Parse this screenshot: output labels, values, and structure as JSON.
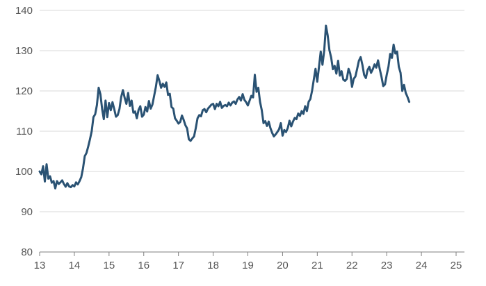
{
  "chart_data": {
    "type": "line",
    "title": "",
    "xlabel": "",
    "ylabel": "",
    "xlim": [
      13,
      25.3
    ],
    "ylim": [
      80,
      140
    ],
    "x_ticks": [
      {
        "value": 13,
        "label": "13"
      },
      {
        "value": 14,
        "label": "14"
      },
      {
        "value": 15,
        "label": "15"
      },
      {
        "value": 16,
        "label": "16"
      },
      {
        "value": 17,
        "label": "17"
      },
      {
        "value": 18,
        "label": "18"
      },
      {
        "value": 19,
        "label": "19"
      },
      {
        "value": 20,
        "label": "20"
      },
      {
        "value": 21,
        "label": "21"
      },
      {
        "value": 22,
        "label": "22"
      },
      {
        "value": 23,
        "label": "23"
      },
      {
        "value": 24,
        "label": "24"
      },
      {
        "value": 25,
        "label": "25"
      }
    ],
    "y_ticks": [
      {
        "value": 80,
        "label": "80"
      },
      {
        "value": 90,
        "label": "90"
      },
      {
        "value": 100,
        "label": "100"
      },
      {
        "value": 110,
        "label": "110"
      },
      {
        "value": 120,
        "label": "120"
      },
      {
        "value": 130,
        "label": "130"
      },
      {
        "value": 140,
        "label": "140"
      }
    ],
    "grid": {
      "horizontal": true,
      "vertical": false
    },
    "colors": {
      "line": "#2a5273",
      "grid": "#d9d9d9",
      "axis": "#7f7f7f",
      "text": "#555555"
    },
    "series": [
      {
        "points": [
          [
            13.0,
            100.0
          ],
          [
            13.05,
            99.3
          ],
          [
            13.1,
            101.3
          ],
          [
            13.15,
            97.5
          ],
          [
            13.2,
            101.8
          ],
          [
            13.25,
            98.2
          ],
          [
            13.3,
            98.8
          ],
          [
            13.35,
            97.2
          ],
          [
            13.4,
            97.6
          ],
          [
            13.45,
            95.8
          ],
          [
            13.5,
            97.6
          ],
          [
            13.55,
            96.9
          ],
          [
            13.6,
            97.3
          ],
          [
            13.65,
            97.8
          ],
          [
            13.7,
            96.9
          ],
          [
            13.75,
            96.2
          ],
          [
            13.8,
            97.1
          ],
          [
            13.85,
            96.3
          ],
          [
            13.9,
            96.1
          ],
          [
            13.95,
            96.6
          ],
          [
            14.0,
            96.3
          ],
          [
            14.05,
            97.3
          ],
          [
            14.1,
            96.8
          ],
          [
            14.15,
            97.6
          ],
          [
            14.2,
            98.6
          ],
          [
            14.25,
            100.8
          ],
          [
            14.3,
            103.8
          ],
          [
            14.35,
            104.6
          ],
          [
            14.4,
            106.2
          ],
          [
            14.45,
            108.0
          ],
          [
            14.5,
            110.0
          ],
          [
            14.55,
            113.5
          ],
          [
            14.6,
            114.2
          ],
          [
            14.65,
            116.5
          ],
          [
            14.7,
            120.8
          ],
          [
            14.75,
            119.2
          ],
          [
            14.8,
            115.5
          ],
          [
            14.85,
            113.0
          ],
          [
            14.9,
            117.6
          ],
          [
            14.95,
            113.5
          ],
          [
            15.0,
            117.0
          ],
          [
            15.05,
            115.2
          ],
          [
            15.1,
            117.2
          ],
          [
            15.15,
            115.5
          ],
          [
            15.2,
            113.6
          ],
          [
            15.25,
            114.0
          ],
          [
            15.3,
            115.5
          ],
          [
            15.35,
            118.5
          ],
          [
            15.4,
            120.2
          ],
          [
            15.45,
            118.3
          ],
          [
            15.5,
            116.8
          ],
          [
            15.55,
            119.5
          ],
          [
            15.6,
            116.3
          ],
          [
            15.65,
            117.6
          ],
          [
            15.7,
            114.6
          ],
          [
            15.75,
            114.9
          ],
          [
            15.8,
            113.2
          ],
          [
            15.85,
            115.3
          ],
          [
            15.9,
            116.2
          ],
          [
            15.95,
            113.6
          ],
          [
            16.0,
            114.1
          ],
          [
            16.05,
            116.0
          ],
          [
            16.1,
            114.9
          ],
          [
            16.15,
            117.5
          ],
          [
            16.2,
            115.6
          ],
          [
            16.25,
            116.6
          ],
          [
            16.3,
            118.8
          ],
          [
            16.35,
            121.0
          ],
          [
            16.4,
            123.9
          ],
          [
            16.45,
            122.5
          ],
          [
            16.5,
            120.8
          ],
          [
            16.55,
            121.8
          ],
          [
            16.6,
            121.0
          ],
          [
            16.65,
            122.1
          ],
          [
            16.7,
            119.0
          ],
          [
            16.75,
            119.3
          ],
          [
            16.8,
            116.0
          ],
          [
            16.85,
            115.6
          ],
          [
            16.9,
            113.2
          ],
          [
            16.95,
            112.6
          ],
          [
            17.0,
            111.9
          ],
          [
            17.05,
            112.3
          ],
          [
            17.1,
            113.9
          ],
          [
            17.15,
            112.8
          ],
          [
            17.2,
            111.5
          ],
          [
            17.25,
            110.7
          ],
          [
            17.3,
            108.0
          ],
          [
            17.35,
            107.6
          ],
          [
            17.4,
            108.2
          ],
          [
            17.45,
            108.7
          ],
          [
            17.5,
            110.8
          ],
          [
            17.55,
            113.2
          ],
          [
            17.6,
            114.0
          ],
          [
            17.65,
            113.7
          ],
          [
            17.7,
            115.2
          ],
          [
            17.75,
            115.5
          ],
          [
            17.8,
            114.7
          ],
          [
            17.85,
            115.6
          ],
          [
            17.9,
            116.1
          ],
          [
            17.95,
            116.6
          ],
          [
            18.0,
            116.8
          ],
          [
            18.05,
            115.5
          ],
          [
            18.1,
            116.8
          ],
          [
            18.15,
            116.2
          ],
          [
            18.2,
            117.3
          ],
          [
            18.25,
            115.8
          ],
          [
            18.3,
            116.3
          ],
          [
            18.35,
            116.5
          ],
          [
            18.4,
            116.2
          ],
          [
            18.45,
            117.1
          ],
          [
            18.5,
            116.4
          ],
          [
            18.55,
            117.1
          ],
          [
            18.6,
            117.4
          ],
          [
            18.65,
            116.8
          ],
          [
            18.7,
            117.9
          ],
          [
            18.75,
            118.5
          ],
          [
            18.8,
            117.6
          ],
          [
            18.85,
            119.2
          ],
          [
            18.9,
            117.8
          ],
          [
            18.95,
            117.2
          ],
          [
            19.0,
            116.4
          ],
          [
            19.05,
            117.6
          ],
          [
            19.1,
            118.8
          ],
          [
            19.15,
            118.4
          ],
          [
            19.2,
            124.0
          ],
          [
            19.25,
            119.8
          ],
          [
            19.3,
            120.8
          ],
          [
            19.35,
            117.3
          ],
          [
            19.4,
            115.2
          ],
          [
            19.45,
            112.0
          ],
          [
            19.5,
            112.5
          ],
          [
            19.55,
            111.3
          ],
          [
            19.6,
            112.4
          ],
          [
            19.65,
            110.8
          ],
          [
            19.7,
            109.6
          ],
          [
            19.75,
            108.7
          ],
          [
            19.8,
            109.2
          ],
          [
            19.85,
            109.8
          ],
          [
            19.9,
            110.5
          ],
          [
            19.95,
            112.0
          ],
          [
            20.0,
            108.9
          ],
          [
            20.05,
            110.3
          ],
          [
            20.1,
            109.8
          ],
          [
            20.15,
            110.8
          ],
          [
            20.2,
            112.6
          ],
          [
            20.25,
            111.2
          ],
          [
            20.3,
            112.4
          ],
          [
            20.35,
            113.3
          ],
          [
            20.4,
            113.0
          ],
          [
            20.45,
            114.4
          ],
          [
            20.5,
            113.8
          ],
          [
            20.55,
            115.0
          ],
          [
            20.6,
            114.3
          ],
          [
            20.65,
            116.2
          ],
          [
            20.7,
            115.0
          ],
          [
            20.75,
            117.3
          ],
          [
            20.8,
            118.0
          ],
          [
            20.85,
            120.0
          ],
          [
            20.9,
            122.8
          ],
          [
            20.95,
            125.5
          ],
          [
            21.0,
            122.3
          ],
          [
            21.05,
            126.0
          ],
          [
            21.1,
            129.8
          ],
          [
            21.15,
            126.5
          ],
          [
            21.2,
            130.0
          ],
          [
            21.25,
            136.2
          ],
          [
            21.3,
            133.8
          ],
          [
            21.35,
            130.1
          ],
          [
            21.4,
            128.3
          ],
          [
            21.45,
            125.4
          ],
          [
            21.5,
            126.2
          ],
          [
            21.55,
            124.3
          ],
          [
            21.6,
            127.5
          ],
          [
            21.65,
            123.8
          ],
          [
            21.7,
            124.9
          ],
          [
            21.75,
            122.8
          ],
          [
            21.8,
            122.5
          ],
          [
            21.85,
            123.0
          ],
          [
            21.9,
            125.5
          ],
          [
            21.95,
            124.3
          ],
          [
            22.0,
            121.0
          ],
          [
            22.05,
            123.0
          ],
          [
            22.1,
            123.6
          ],
          [
            22.15,
            125.5
          ],
          [
            22.2,
            127.5
          ],
          [
            22.25,
            128.4
          ],
          [
            22.3,
            126.5
          ],
          [
            22.35,
            124.0
          ],
          [
            22.4,
            123.2
          ],
          [
            22.45,
            125.2
          ],
          [
            22.5,
            126.0
          ],
          [
            22.55,
            124.5
          ],
          [
            22.6,
            125.4
          ],
          [
            22.65,
            126.6
          ],
          [
            22.7,
            125.8
          ],
          [
            22.75,
            127.6
          ],
          [
            22.8,
            125.4
          ],
          [
            22.85,
            123.5
          ],
          [
            22.9,
            121.2
          ],
          [
            22.95,
            121.6
          ],
          [
            23.0,
            124.0
          ],
          [
            23.05,
            126.0
          ],
          [
            23.1,
            129.2
          ],
          [
            23.15,
            128.2
          ],
          [
            23.2,
            131.5
          ],
          [
            23.25,
            129.3
          ],
          [
            23.3,
            129.8
          ],
          [
            23.35,
            126.0
          ],
          [
            23.4,
            124.5
          ],
          [
            23.45,
            120.0
          ],
          [
            23.5,
            121.5
          ],
          [
            23.55,
            119.5
          ],
          [
            23.6,
            118.5
          ],
          [
            23.65,
            117.3
          ]
        ],
        "x_note": "",
        "name": ""
      }
    ]
  }
}
